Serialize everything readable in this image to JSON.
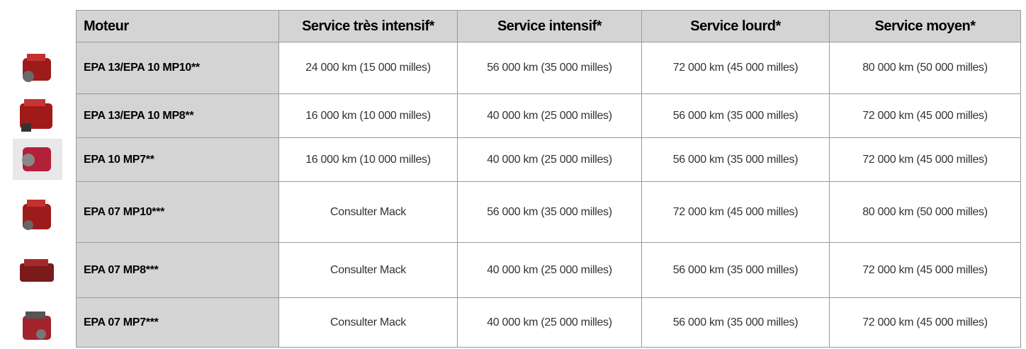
{
  "table": {
    "header": [
      "Moteur",
      "Service très intensif*",
      "Service intensif*",
      "Service lourd*",
      "Service moyen*"
    ],
    "rows": [
      [
        "EPA 13/EPA 10 MP10**",
        "24 000 km (15 000 milles)",
        "56 000 km (35 000 milles)",
        "72 000 km (45 000 milles)",
        "80 000 km (50 000 milles)"
      ],
      [
        "EPA 13/EPA 10 MP8**",
        "16 000 km (10 000 milles)",
        "40 000 km (25 000 milles)",
        "56 000 km (35 000 milles)",
        "72 000 km (45 000 milles)"
      ],
      [
        "EPA 10 MP7**",
        "16 000 km (10 000 milles)",
        "40 000 km (25 000 milles)",
        "56 000 km (35 000 milles)",
        "72 000 km (45 000 milles)"
      ],
      [
        "EPA 07 MP10***",
        "Consulter Mack",
        "56 000 km (35 000 milles)",
        "72 000 km (45 000 milles)",
        "80 000 km (50 000 milles)"
      ],
      [
        "EPA 07 MP8***",
        "Consulter Mack",
        "40 000 km (25 000 milles)",
        "56 000 km (35 000 milles)",
        "72 000 km (45 000 milles)"
      ],
      [
        "EPA 07 MP7***",
        "Consulter Mack",
        "40 000 km (25 000 milles)",
        "56 000 km (35 000 milles)",
        "72 000 km (45 000 milles)"
      ]
    ]
  }
}
